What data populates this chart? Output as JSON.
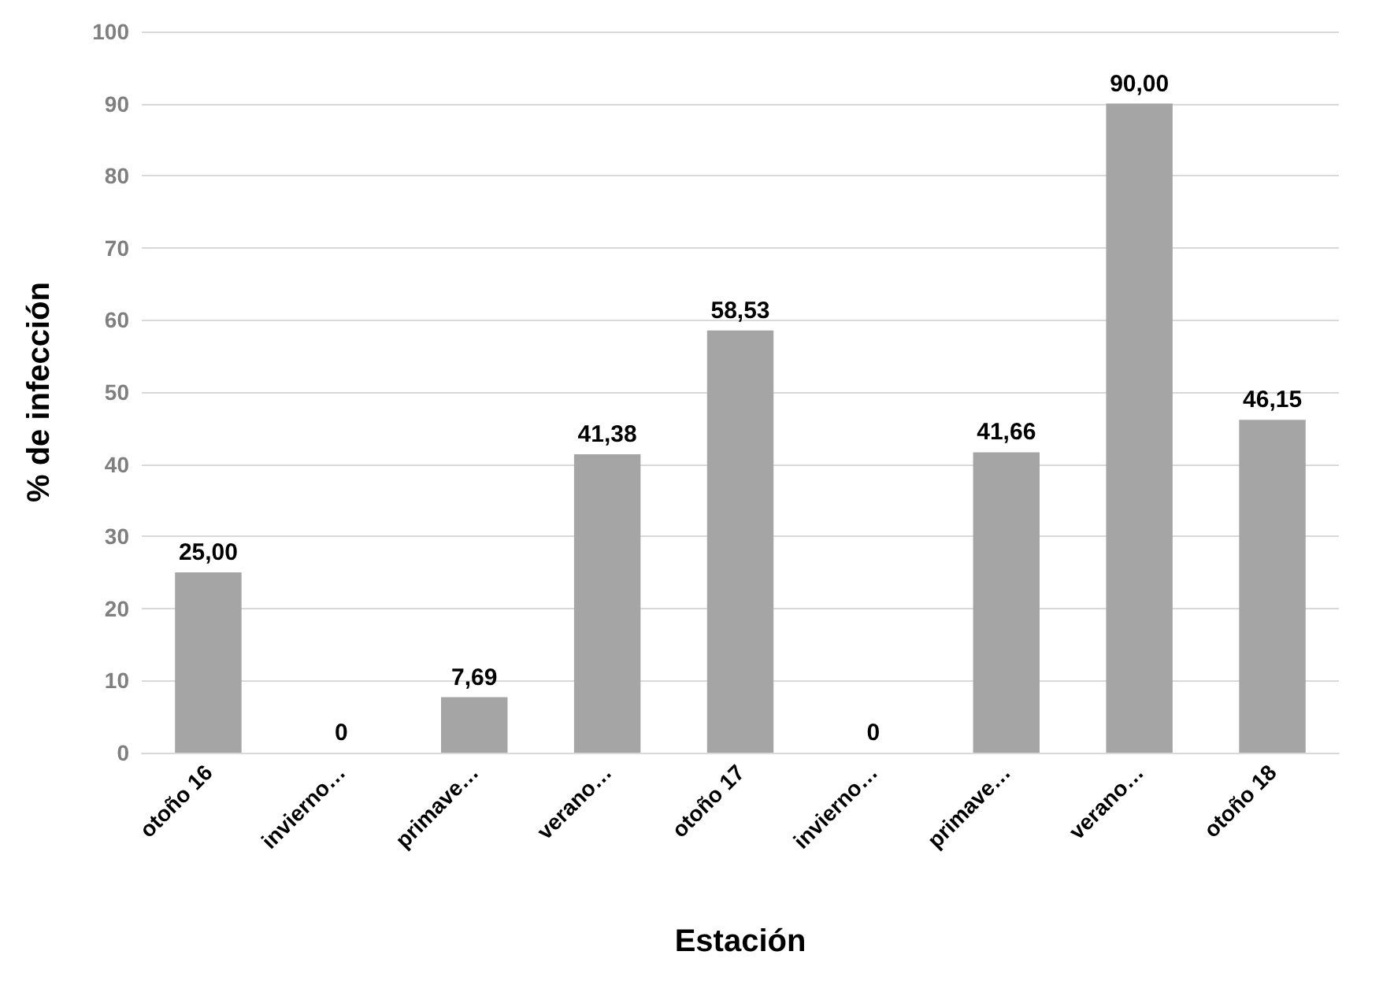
{
  "chart_data": {
    "type": "bar",
    "xlabel": "Estación",
    "ylabel": "% de infección",
    "categories": [
      "otoño 16",
      "invierno…",
      "primave…",
      "verano…",
      "otoño 17",
      "invierno…",
      "primave…",
      "verano…",
      "otoño 18"
    ],
    "values": [
      25,
      0,
      7.69,
      41.38,
      58.53,
      0,
      41.66,
      90,
      46.15
    ],
    "value_labels": [
      "25,00",
      "0",
      "7,69",
      "41,38",
      "58,53",
      "0",
      "41,66",
      "90,00",
      "46,15"
    ],
    "color": "#a5a5a5",
    "ylim": [
      0,
      100
    ],
    "yticks": [
      0,
      10,
      20,
      30,
      40,
      50,
      60,
      70,
      80,
      90,
      100
    ],
    "grid": "y"
  }
}
